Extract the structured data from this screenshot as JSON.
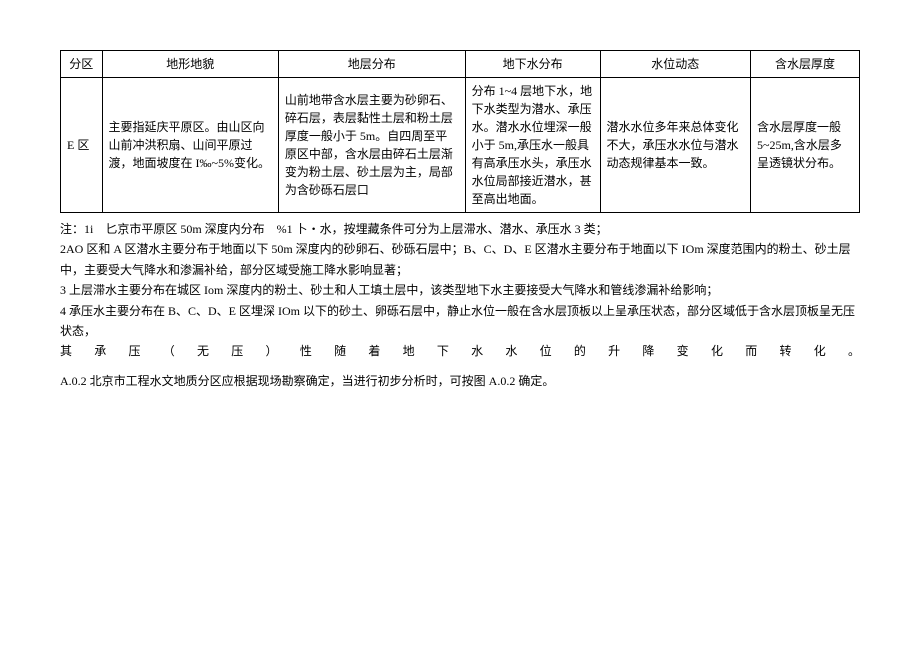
{
  "table": {
    "headers": [
      "分区",
      "地形地貌",
      "地层分布",
      "地下水分布",
      "水位动态",
      "含水层厚度"
    ],
    "row": {
      "zone": "E 区",
      "terrain": "主要指延庆平原区。由山区向山前冲洪积扇、山间平原过渡，地面坡度在 I‰~5%变化。",
      "strata": "山前地带含水层主要为砂卵石、碎石层，表层黏性土层和粉土层厚度一般小于 5m。自四周至平原区中部，含水层由碎石土层渐变为粉土层、砂土层为主，局部为含砂砾石层口",
      "groundwater": "分布 1~4 层地下水，地下水类型为潜水、承压水。潜水水位埋深一般小于 5m,承压水一般具有高承压水头，承压水水位局部接近潜水，甚至高出地面。",
      "dynamics": "潜水水位多年来总体变化不大，承压水水位与潜水动态规律基本一致。",
      "thickness": "含水层厚度一般5~25m,含水层多呈透镜状分布。"
    }
  },
  "notes": {
    "n1": "注：1i　匕京市平原区 50m 深度内分布　%1 卜・水，按埋藏条件可分为上层滞水、潜水、承压水 3 类；",
    "n2": "2AO 区和 A 区潜水主要分布于地面以下 50m 深度内的砂卵石、砂砾石层中；B、C、D、E 区潜水主要分布于地面以下 IOm 深度范围内的粉土、砂土层中，主要受大气降水和渗漏补给，部分区域受施工降水影响显著；",
    "n3": "3 上层滞水主要分布在城区 Iom 深度内的粉土、砂土和人工填土层中，该类型地下水主要接受大气降水和管线渗漏补给影响；",
    "n4a": "4 承压水主要分布在 B、C、D、E 区埋深 IOm 以下的砂土、卵砾石层中，静止水位一般在含水层顶板以上呈承压状态，部分区域低于含水层顶板呈无压状态，",
    "n4b": "其承压（无压）性随着地下水水位的升降变化而转化。"
  },
  "section": "A.0.2 北京市工程水文地质分区应根据现场勘察确定，当进行初步分析时，可按图 A.0.2 确定。"
}
